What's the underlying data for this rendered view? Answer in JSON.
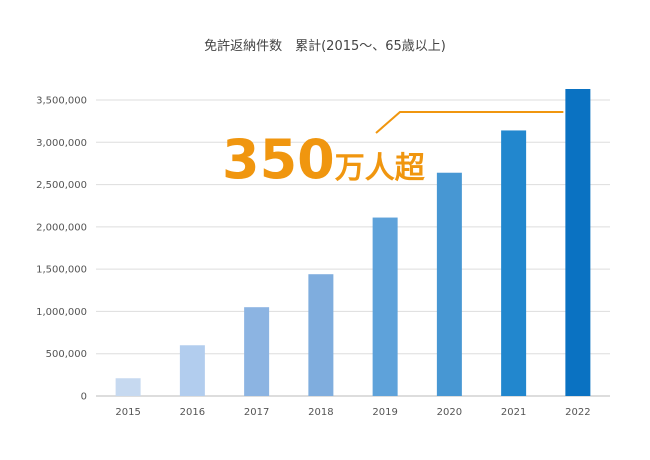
{
  "chart_data": {
    "type": "bar",
    "title": "免許返納件数　累計(2015〜、65歳以上)",
    "categories": [
      "2015",
      "2016",
      "2017",
      "2018",
      "2019",
      "2020",
      "2021",
      "2022"
    ],
    "values": [
      210000,
      600000,
      1050000,
      1440000,
      2110000,
      2640000,
      3140000,
      3630000
    ],
    "ylim": [
      0,
      3500000
    ],
    "yticks": [
      0,
      500000,
      1000000,
      1500000,
      2000000,
      2500000,
      3000000,
      3500000
    ],
    "ytick_labels": [
      "0",
      "500,000",
      "1,000,000",
      "1,500,000",
      "2,000,000",
      "2,500,000",
      "3,000,000",
      "3,500,000"
    ],
    "grid": true,
    "xlabel": "",
    "ylabel": "",
    "bar_colors": [
      "#c6d9f0",
      "#b2cdee",
      "#8cb4e2",
      "#7fadde",
      "#5ea2da",
      "#4797d3",
      "#2287ce",
      "#0a72c2"
    ],
    "annotation": {
      "number": "350",
      "suffix": "万人超",
      "color": "#f0960f"
    }
  }
}
